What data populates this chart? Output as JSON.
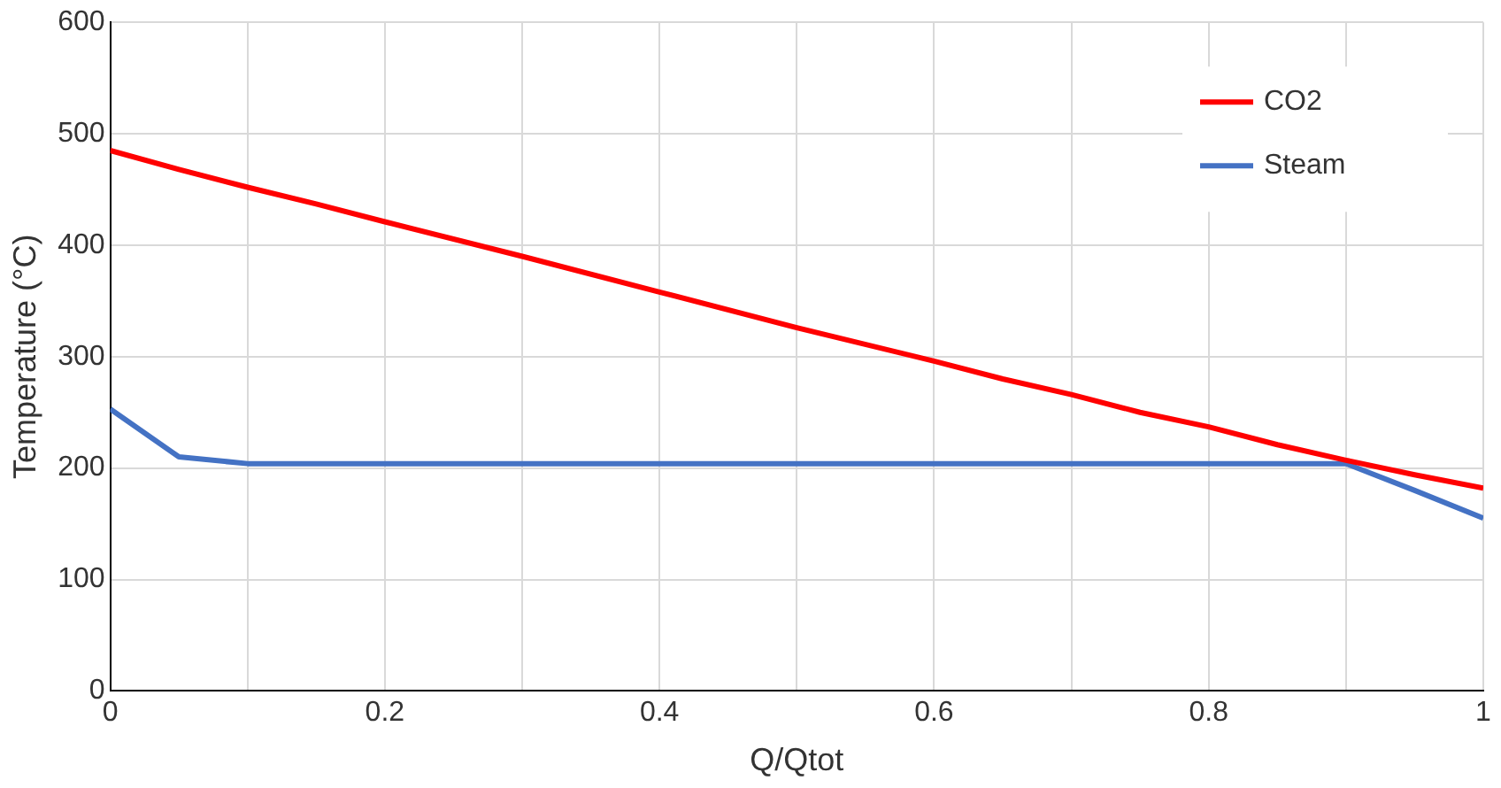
{
  "chart_data": {
    "type": "line",
    "xlabel": "Q/Qtot",
    "ylabel": "Temperature (°C)",
    "x": [
      0,
      0.05,
      0.1,
      0.15,
      0.2,
      0.3,
      0.4,
      0.5,
      0.6,
      0.65,
      0.7,
      0.75,
      0.8,
      0.85,
      0.9,
      0.95,
      1
    ],
    "series": [
      {
        "name": "CO2",
        "color": "#ff0000",
        "values": [
          485,
          468,
          452,
          437,
          421,
          390,
          358,
          326,
          296,
          280,
          266,
          250,
          237,
          221,
          207,
          194,
          182
        ]
      },
      {
        "name": "Steam",
        "color": "#4472c4",
        "values": [
          253,
          210,
          204,
          204,
          204,
          204,
          204,
          204,
          204,
          204,
          204,
          204,
          204,
          204,
          204,
          180,
          155
        ]
      }
    ],
    "xlim": [
      0,
      1
    ],
    "ylim": [
      0,
      600
    ],
    "xticks": [
      0,
      {
        "value": 0.1,
        "label": null
      },
      0.2,
      {
        "value": 0.3,
        "label": null
      },
      0.4,
      {
        "value": 0.5,
        "label": null
      },
      0.6,
      {
        "value": 0.7,
        "label": null
      },
      0.8,
      {
        "value": 0.9,
        "label": null
      },
      1
    ],
    "yticks": [
      0,
      100,
      200,
      300,
      400,
      500,
      600
    ],
    "grid": true,
    "legend": "top right",
    "marker": "none",
    "line_style": "solid"
  }
}
